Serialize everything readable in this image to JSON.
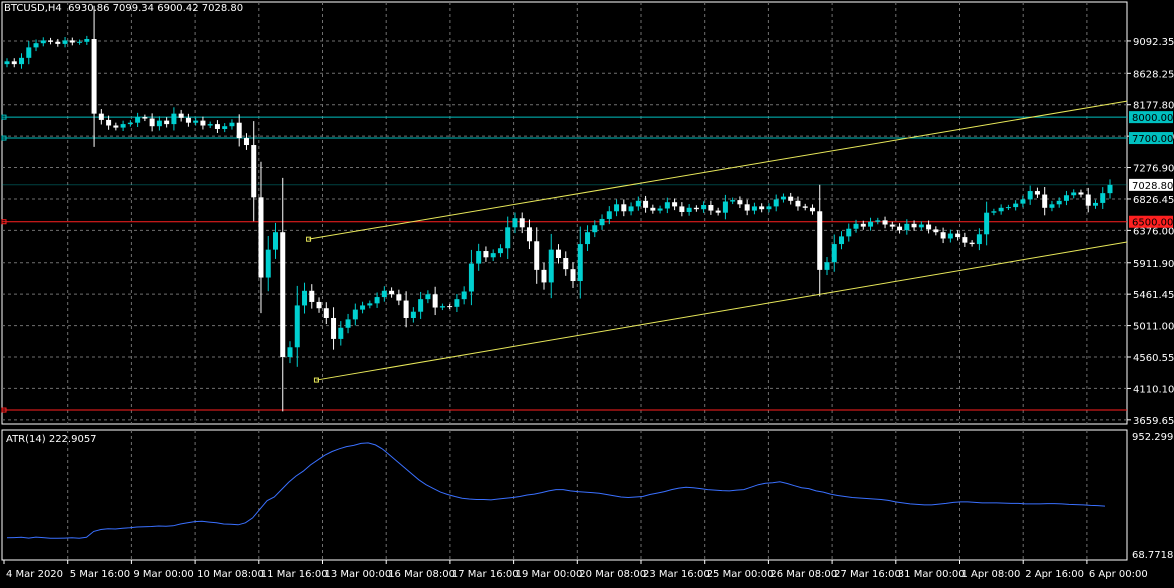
{
  "header": {
    "symbol_line": "BTCUSD,H4  6930.86 7099.34 6900.42 7028.80",
    "indicator_line": "ATR(14) 222.9057"
  },
  "colors": {
    "background": "#000000",
    "grid": "#707070",
    "bull": "#00d0d0",
    "bear": "#ffffff",
    "channel": "#e8e85a",
    "support_line": "#ff2020",
    "hline_cyan": "#00c0c0",
    "atr_line": "#3a70ff",
    "price_tag": "#ffffff"
  },
  "chart_data": [
    {
      "type": "candlestick",
      "title": "BTCUSD,H4",
      "ohlc_readout": {
        "open": 6930.86,
        "high": 7099.34,
        "low": 6900.42,
        "close": 7028.8
      },
      "ylim": [
        3600,
        9450
      ],
      "y_ticks": [
        "9092.35",
        "8628.25",
        "8177.80",
        "7727.50",
        "7276.90",
        "6826.45",
        "6376.00",
        "5911.90",
        "5461.45",
        "5011.00",
        "4560.55",
        "4110.10",
        "3659.65"
      ],
      "x_ticks": [
        "4 Mar 2020",
        "5 Mar 16:00",
        "9 Mar 00:00",
        "10 Mar 08:00",
        "11 Mar 16:00",
        "13 Mar 00:00",
        "16 Mar 08:00",
        "17 Mar 16:00",
        "19 Mar 00:00",
        "20 Mar 08:00",
        "23 Mar 16:00",
        "25 Mar 00:00",
        "26 Mar 08:00",
        "27 Mar 16:00",
        "31 Mar 00:00",
        "1 Apr 08:00",
        "2 Apr 16:00",
        "6 Apr 00:00"
      ],
      "horizontal_levels": [
        {
          "label": "8000.00",
          "value": 8000,
          "color": "cyan"
        },
        {
          "label": "7700.00",
          "value": 7700,
          "color": "cyan"
        },
        {
          "label": "7028.80",
          "value": 7028.8,
          "color": "current"
        },
        {
          "label": "6500.00",
          "value": 6500,
          "color": "red"
        },
        {
          "label": "",
          "value": 3800,
          "color": "red"
        }
      ],
      "channel": {
        "upper": [
          [
            0.2725,
            6250
          ],
          [
            1.0,
            8230
          ]
        ],
        "lower": [
          [
            0.2795,
            4230
          ],
          [
            1.0,
            6210
          ]
        ]
      },
      "closes": [
        8800,
        8760,
        8850,
        9000,
        9060,
        9100,
        9080,
        9050,
        9100,
        9070,
        9080,
        9120,
        8050,
        7960,
        7880,
        7850,
        7900,
        7920,
        8000,
        7980,
        7870,
        7950,
        7900,
        8050,
        7990,
        7920,
        7950,
        7880,
        7900,
        7830,
        7870,
        7920,
        7700,
        7600,
        6850,
        5700,
        6100,
        6350,
        4560,
        4700,
        5300,
        5510,
        5350,
        5260,
        5120,
        4820,
        4980,
        5100,
        5240,
        5300,
        5330,
        5420,
        5510,
        5460,
        5370,
        5120,
        5210,
        5390,
        5460,
        5270,
        5290,
        5280,
        5390,
        5500,
        5900,
        6080,
        5990,
        6050,
        6120,
        6420,
        6550,
        6420,
        6220,
        5810,
        5630,
        6100,
        5980,
        5820,
        5650,
        6180,
        6350,
        6450,
        6540,
        6650,
        6750,
        6650,
        6720,
        6800,
        6700,
        6660,
        6690,
        6780,
        6720,
        6640,
        6700,
        6680,
        6740,
        6660,
        6630,
        6790,
        6810,
        6750,
        6660,
        6720,
        6680,
        6720,
        6820,
        6860,
        6800,
        6720,
        6700,
        6650,
        5810,
        5920,
        6180,
        6290,
        6400,
        6470,
        6430,
        6500,
        6520,
        6460,
        6430,
        6380,
        6470,
        6420,
        6460,
        6390,
        6350,
        6260,
        6330,
        6280,
        6200,
        6180,
        6320,
        6630,
        6650,
        6700,
        6710,
        6760,
        6820,
        6940,
        6890,
        6700,
        6750,
        6800,
        6880,
        6920,
        6890,
        6730,
        6770,
        6910,
        7028.8
      ],
      "atr_values": [
        94,
        95,
        96,
        93,
        97,
        95,
        92,
        92,
        93,
        94,
        92,
        96,
        120,
        128,
        131,
        130,
        133,
        135,
        138,
        139,
        140,
        142,
        141,
        143,
        150,
        155,
        160,
        161,
        158,
        155,
        150,
        149,
        147,
        155,
        175,
        210,
        245,
        260,
        290,
        320,
        345,
        365,
        390,
        410,
        430,
        445,
        456,
        465,
        470,
        478,
        480,
        472,
        455,
        430,
        405,
        380,
        355,
        330,
        310,
        295,
        280,
        270,
        262,
        255,
        252,
        250,
        250,
        248,
        252,
        255,
        258,
        262,
        268,
        272,
        278,
        285,
        290,
        290,
        285,
        282,
        280,
        278,
        275,
        270,
        265,
        260,
        258,
        260,
        262,
        270,
        276,
        282,
        290,
        296,
        300,
        298,
        294,
        290,
        288,
        286,
        285,
        288,
        290,
        300,
        310,
        316,
        318,
        322,
        315,
        306,
        298,
        294,
        285,
        280,
        272,
        266,
        262,
        258,
        256,
        254,
        252,
        250,
        246,
        240,
        236,
        232,
        230,
        228,
        228,
        231,
        234,
        238,
        240,
        240,
        238,
        236,
        236,
        236,
        235,
        234,
        234,
        232,
        232,
        232,
        233,
        233,
        232,
        230,
        229,
        228,
        226,
        225,
        223
      ],
      "atr_scale": [
        68.7718,
        952.2996
      ]
    }
  ],
  "y_axis_labels": [
    "9092.35",
    "8628.25",
    "8177.80",
    "7727.50",
    "7276.90",
    "6826.45",
    "6376.00",
    "5911.90",
    "5461.45",
    "5011.00",
    "4560.55",
    "4110.10",
    "3659.65"
  ],
  "atr_axis_labels": {
    "top": "952.2996",
    "bottom": "68.7718"
  }
}
